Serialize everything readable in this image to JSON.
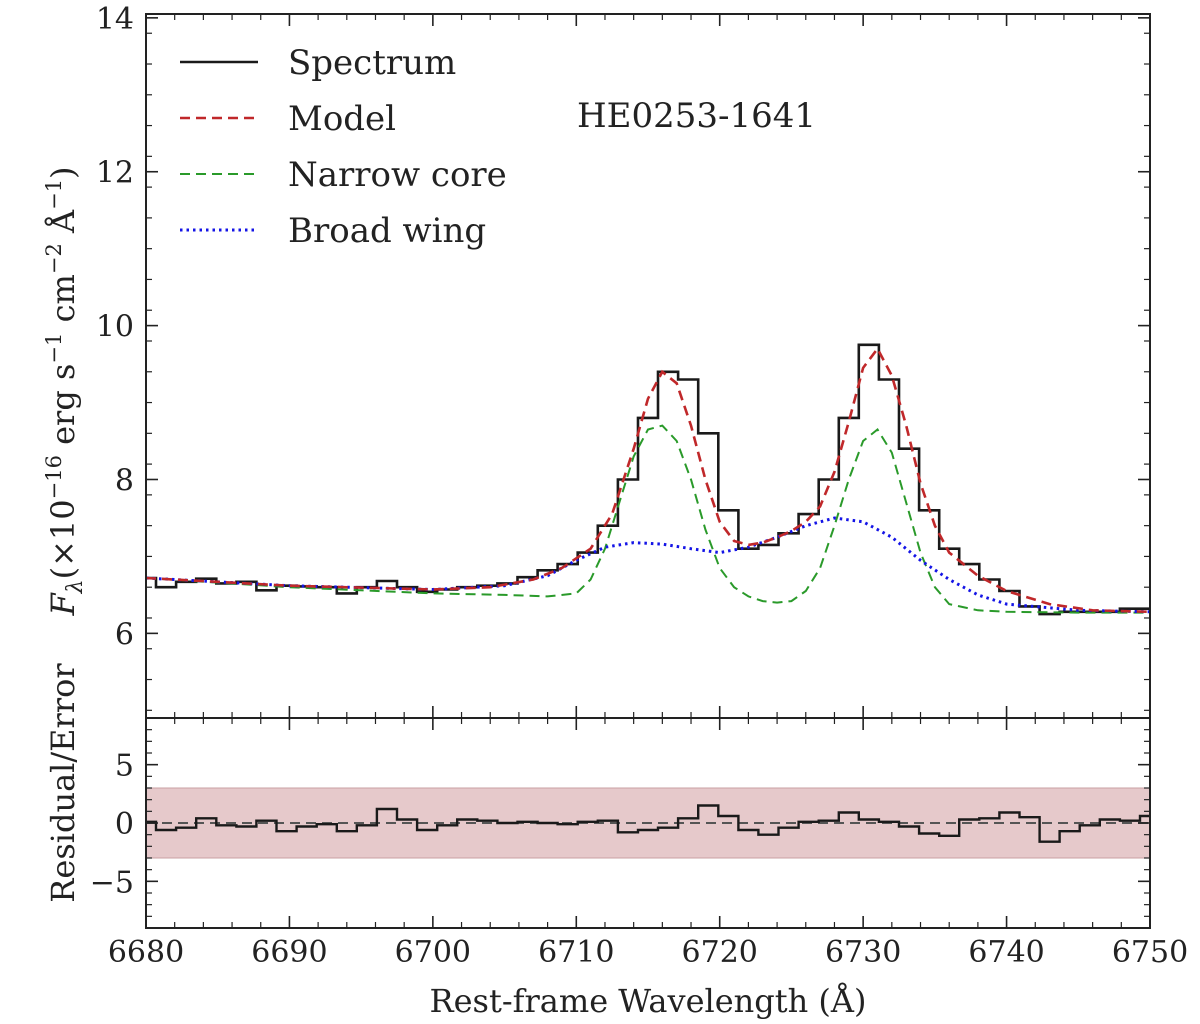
{
  "chart_data": [
    {
      "type": "line",
      "panel": "main",
      "ylabel": "F_λ(×10^−16 erg s^−1 cm^−2 Å^−1)",
      "ylabel_parts": {
        "f": "F",
        "sub": "λ",
        "pre": "(×10",
        "exp1": "−16",
        "mid1": " erg s",
        "exp2": "−1",
        "mid2": " cm",
        "exp3": "−2",
        "mid3": " Å",
        "exp4": "−1",
        "post": ")"
      },
      "xlim": [
        6680,
        6750
      ],
      "ylim": [
        4.9,
        14.05
      ],
      "yticks": [
        6,
        8,
        10,
        12,
        14
      ],
      "ytick_labels": [
        "6",
        "8",
        "10",
        "12",
        "14"
      ],
      "annotation": "HE0253-1641",
      "legend": {
        "placement": "top-left",
        "entries": [
          "Spectrum",
          "Model",
          "Narrow core",
          "Broad wing"
        ]
      },
      "series": [
        {
          "name": "Spectrum",
          "color": "#1a1a1a",
          "style": "steps",
          "x": [
            6680,
            6681.4,
            6682.8,
            6684.2,
            6685.6,
            6687,
            6688.4,
            6689.8,
            6691.2,
            6692.6,
            6694,
            6695.4,
            6696.8,
            6698.2,
            6699.6,
            6701,
            6702.4,
            6703.8,
            6705.2,
            6706.6,
            6708,
            6709.4,
            6710.8,
            6712.2,
            6713.6,
            6715,
            6716.4,
            6717.8,
            6719.2,
            6720.6,
            6722,
            6723.4,
            6724.8,
            6726.2,
            6727.6,
            6729,
            6730.4,
            6731.8,
            6733.2,
            6734.6,
            6736,
            6737.4,
            6738.8,
            6740.2,
            6741.6,
            6743,
            6744.4,
            6745.8,
            6747.2,
            6748.6,
            6750
          ],
          "values": [
            6.72,
            6.6,
            6.67,
            6.71,
            6.65,
            6.67,
            6.56,
            6.62,
            6.61,
            6.6,
            6.52,
            6.6,
            6.68,
            6.6,
            6.54,
            6.57,
            6.6,
            6.62,
            6.65,
            6.73,
            6.82,
            6.9,
            7.05,
            7.4,
            8.0,
            8.8,
            9.4,
            9.3,
            8.6,
            7.6,
            7.1,
            7.15,
            7.3,
            7.55,
            8.0,
            8.8,
            9.75,
            9.3,
            8.4,
            7.6,
            7.1,
            6.9,
            6.7,
            6.55,
            6.35,
            6.25,
            6.28,
            6.28,
            6.28,
            6.32,
            6.32
          ]
        },
        {
          "name": "Model",
          "color": "#c0282a",
          "style": "dashed",
          "x": [
            6680,
            6690,
            6700,
            6704,
            6707,
            6709,
            6711,
            6712.5,
            6714,
            6715,
            6716,
            6717,
            6718,
            6719,
            6720,
            6721,
            6722,
            6723,
            6724,
            6725,
            6726,
            6727,
            6728,
            6729,
            6730,
            6731,
            6732,
            6733,
            6734,
            6735,
            6736,
            6738,
            6740,
            6743,
            6746,
            6750
          ],
          "values": [
            6.72,
            6.62,
            6.57,
            6.6,
            6.7,
            6.85,
            7.1,
            7.55,
            8.4,
            9.05,
            9.4,
            9.25,
            8.7,
            8.0,
            7.45,
            7.2,
            7.15,
            7.18,
            7.25,
            7.33,
            7.45,
            7.65,
            8.1,
            8.75,
            9.45,
            9.7,
            9.35,
            8.7,
            7.95,
            7.4,
            7.05,
            6.75,
            6.55,
            6.38,
            6.3,
            6.28
          ]
        },
        {
          "name": "Narrow core",
          "color": "#2a9a2a",
          "style": "dashed",
          "x": [
            6680,
            6690,
            6700,
            6705,
            6708,
            6710,
            6711,
            6712,
            6713,
            6714,
            6715,
            6716,
            6717,
            6718,
            6719,
            6720,
            6721,
            6722,
            6723,
            6724,
            6725,
            6726,
            6727,
            6728,
            6729,
            6730,
            6731,
            6732,
            6733,
            6734,
            6735,
            6736,
            6738,
            6740,
            6745,
            6750
          ],
          "values": [
            6.72,
            6.6,
            6.52,
            6.5,
            6.48,
            6.52,
            6.7,
            7.1,
            7.7,
            8.3,
            8.65,
            8.7,
            8.5,
            8.0,
            7.35,
            6.85,
            6.6,
            6.48,
            6.42,
            6.4,
            6.42,
            6.55,
            6.85,
            7.4,
            8.0,
            8.5,
            8.65,
            8.35,
            7.7,
            7.05,
            6.6,
            6.38,
            6.3,
            6.28,
            6.27,
            6.27
          ]
        },
        {
          "name": "Broad wing",
          "color": "#1414e6",
          "style": "dotted",
          "x": [
            6680,
            6690,
            6700,
            6705,
            6708,
            6710,
            6712,
            6714,
            6716,
            6718,
            6720,
            6722,
            6724,
            6726,
            6728,
            6730,
            6732,
            6734,
            6736,
            6738,
            6740,
            6745,
            6750
          ],
          "values": [
            6.72,
            6.62,
            6.57,
            6.62,
            6.75,
            6.95,
            7.12,
            7.18,
            7.16,
            7.1,
            7.05,
            7.12,
            7.25,
            7.4,
            7.5,
            7.45,
            7.25,
            6.95,
            6.7,
            6.5,
            6.38,
            6.3,
            6.28
          ]
        }
      ]
    },
    {
      "type": "line",
      "panel": "residual",
      "ylabel": "Residual/Error",
      "xlabel": "Rest-frame Wavelength (Å)",
      "xlim": [
        6680,
        6750
      ],
      "ylim": [
        -9,
        9
      ],
      "xticks": [
        6680,
        6690,
        6700,
        6710,
        6720,
        6730,
        6740,
        6750
      ],
      "xtick_labels": [
        "6680",
        "6690",
        "6700",
        "6710",
        "6720",
        "6730",
        "6740",
        "6750"
      ],
      "yticks": [
        -5,
        0,
        5
      ],
      "ytick_labels": [
        "−5",
        "0",
        "5"
      ],
      "band": {
        "ymin": -3,
        "ymax": 3,
        "color": "#e6c9cb"
      },
      "zero_line": {
        "y": 0,
        "color": "#555555",
        "style": "dashed"
      },
      "series": [
        {
          "name": "Residual",
          "color": "#1a1a1a",
          "style": "steps",
          "x": [
            6680,
            6681.4,
            6682.8,
            6684.2,
            6685.6,
            6687,
            6688.4,
            6689.8,
            6691.2,
            6692.6,
            6694,
            6695.4,
            6696.8,
            6698.2,
            6699.6,
            6701,
            6702.4,
            6703.8,
            6705.2,
            6706.6,
            6708,
            6709.4,
            6710.8,
            6712.2,
            6713.6,
            6715,
            6716.4,
            6717.8,
            6719.2,
            6720.6,
            6722,
            6723.4,
            6724.8,
            6726.2,
            6727.6,
            6729,
            6730.4,
            6731.8,
            6733.2,
            6734.6,
            6736,
            6737.4,
            6738.8,
            6740.2,
            6741.6,
            6743,
            6744.4,
            6745.8,
            6747.2,
            6748.6,
            6750
          ],
          "values": [
            0.1,
            -0.6,
            -0.4,
            0.4,
            -0.2,
            -0.3,
            0.2,
            -0.7,
            -0.3,
            -0.1,
            -0.7,
            -0.2,
            1.2,
            0.3,
            -0.6,
            -0.2,
            0.3,
            0.2,
            0.0,
            0.1,
            0.0,
            -0.1,
            0.1,
            0.2,
            -0.8,
            -0.6,
            -0.4,
            0.4,
            1.5,
            0.6,
            -0.6,
            -1.0,
            -0.4,
            0.1,
            0.2,
            0.9,
            0.3,
            0.1,
            -0.3,
            -0.9,
            -1.1,
            0.3,
            0.4,
            0.9,
            0.5,
            -1.6,
            -0.7,
            -0.2,
            0.3,
            0.2,
            0.6
          ]
        }
      ]
    }
  ]
}
